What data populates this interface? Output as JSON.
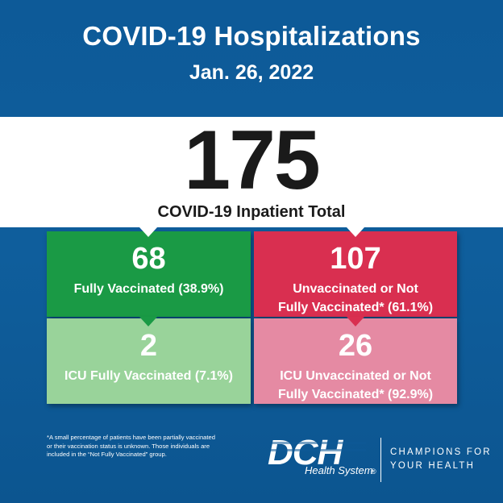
{
  "header": {
    "title": "COVID-19 Hospitalizations",
    "date": "Jan. 26, 2022"
  },
  "total": {
    "value": "175",
    "label": "COVID-19 Inpatient Total"
  },
  "cards": {
    "vaccinated": {
      "value": "68",
      "label": "Fully Vaccinated (38.9%)"
    },
    "unvaccinated": {
      "value": "107",
      "label_line1": "Unvaccinated or Not",
      "label_line2": "Fully Vaccinated* (61.1%)"
    },
    "icu_vaccinated": {
      "value": "2",
      "label": "ICU Fully Vaccinated (7.1%)"
    },
    "icu_unvaccinated": {
      "value": "26",
      "label_line1": "ICU Unvaccinated or Not",
      "label_line2": "Fully Vaccinated* (92.9%)"
    }
  },
  "footnote": {
    "line1": "*A small percentage of patients have been partially vaccinated",
    "line2": "or their vaccination status is unknown. Those individuals are",
    "line3": "included in the “Not Fully Vaccinated” group."
  },
  "brand": {
    "logo_text": "DCH",
    "logo_subtext": "Health System",
    "registered": "®",
    "tagline_line1": "CHAMPIONS FOR",
    "tagline_line2": "YOUR HEALTH"
  },
  "colors": {
    "background": "#0e5a97",
    "vaccinated": "#1a9a45",
    "unvaccinated": "#d92f50",
    "icu_vaccinated": "#99d39a",
    "icu_unvaccinated": "#e58aa3"
  }
}
